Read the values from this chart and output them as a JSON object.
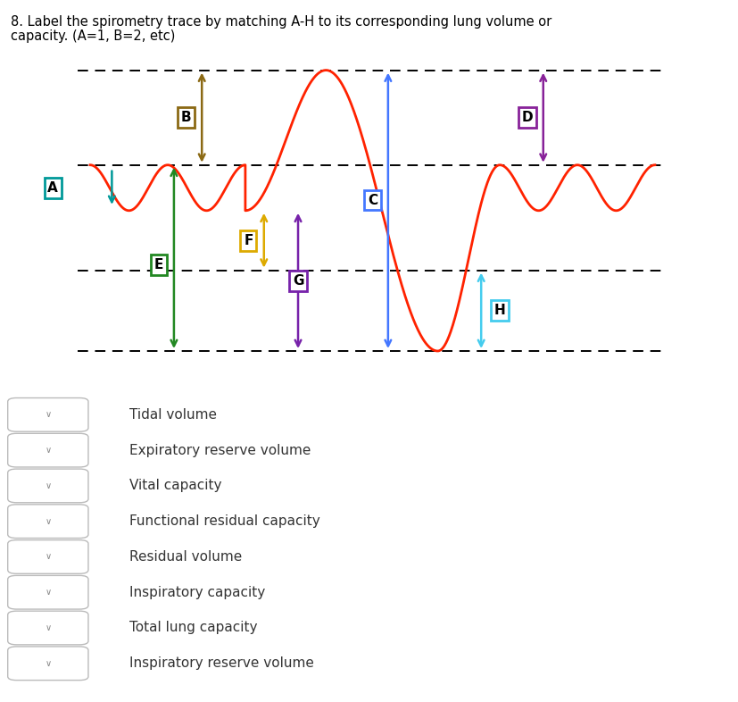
{
  "title_line1": "8. Label the spirometry trace by matching A-H to its corresponding lung volume or",
  "title_line2": "capacity. (A=1, B=2, etc)",
  "title_fontsize": 10.5,
  "bg_color": "#ffffff",
  "figure_size": [
    8.28,
    7.86
  ],
  "dpi": 100,
  "dropdown_items": [
    "Tidal volume",
    "Expiratory reserve volume",
    "Vital capacity",
    "Functional residual capacity",
    "Residual volume",
    "Inspiratory capacity",
    "Total lung capacity",
    "Inspiratory reserve volume"
  ],
  "spirometry_color": "#ff2200",
  "arrow_colors": {
    "A": "#009999",
    "B": "#8B6914",
    "C": "#4477ff",
    "D": "#882299",
    "E": "#228822",
    "F": "#ddaa00",
    "G": "#7722aa",
    "H": "#44ccee"
  },
  "label_box_colors": {
    "A": "#009999",
    "B": "#8B6914",
    "C": "#4477ff",
    "D": "#882299",
    "E": "#228822",
    "F": "#ddaa00",
    "G": "#7722aa",
    "H": "#44ccee"
  }
}
